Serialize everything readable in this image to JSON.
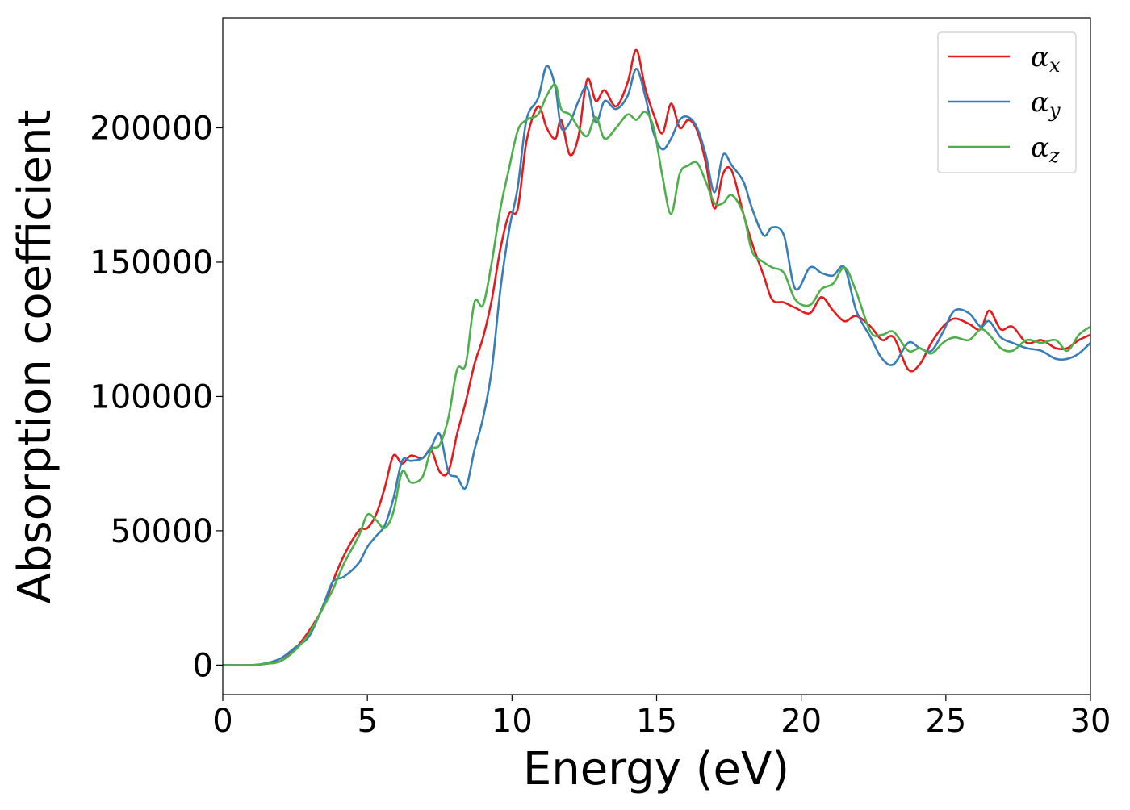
{
  "chart_data": {
    "type": "line",
    "title": "",
    "xlabel": "Energy (eV)",
    "ylabel": "Absorption coefficient",
    "xlim": [
      0,
      30
    ],
    "ylim": [
      -11000,
      241000
    ],
    "xticks": [
      0,
      5,
      10,
      15,
      20,
      25,
      30
    ],
    "xtick_labels": [
      "0",
      "5",
      "10",
      "15",
      "20",
      "25",
      "30"
    ],
    "yticks": [
      0,
      50000,
      100000,
      150000,
      200000
    ],
    "ytick_labels": [
      "0",
      "50000",
      "100000",
      "150000",
      "200000"
    ],
    "grid": false,
    "legend": {
      "placement": "top-right",
      "entries": [
        {
          "symbol": "α",
          "sub": "x"
        },
        {
          "symbol": "α",
          "sub": "y"
        },
        {
          "symbol": "α",
          "sub": "z"
        }
      ]
    },
    "series": [
      {
        "name": "αx",
        "color": "#e41a1c",
        "points": [
          [
            0,
            0
          ],
          [
            1,
            0
          ],
          [
            1.5,
            500
          ],
          [
            2,
            1500
          ],
          [
            2.5,
            6000
          ],
          [
            3,
            13000
          ],
          [
            3.5,
            22000
          ],
          [
            3.8,
            31000
          ],
          [
            4.2,
            41000
          ],
          [
            4.7,
            50000
          ],
          [
            5,
            51000
          ],
          [
            5.3,
            56000
          ],
          [
            5.6,
            66000
          ],
          [
            5.9,
            78000
          ],
          [
            6.2,
            75000
          ],
          [
            6.5,
            78000
          ],
          [
            6.9,
            77000
          ],
          [
            7.2,
            80000
          ],
          [
            7.5,
            72000
          ],
          [
            7.8,
            72000
          ],
          [
            8.1,
            86000
          ],
          [
            8.4,
            98000
          ],
          [
            8.7,
            112000
          ],
          [
            9,
            122000
          ],
          [
            9.3,
            136000
          ],
          [
            9.6,
            155000
          ],
          [
            9.9,
            168000
          ],
          [
            10.2,
            170000
          ],
          [
            10.5,
            195000
          ],
          [
            10.9,
            208000
          ],
          [
            11.2,
            200000
          ],
          [
            11.5,
            196000
          ],
          [
            11.7,
            203000
          ],
          [
            12,
            190000
          ],
          [
            12.3,
            197000
          ],
          [
            12.6,
            218000
          ],
          [
            12.9,
            210000
          ],
          [
            13.2,
            214000
          ],
          [
            13.6,
            208000
          ],
          [
            14,
            217000
          ],
          [
            14.3,
            229000
          ],
          [
            14.6,
            215000
          ],
          [
            14.9,
            205000
          ],
          [
            15.2,
            198000
          ],
          [
            15.5,
            209000
          ],
          [
            15.8,
            200000
          ],
          [
            16.1,
            203000
          ],
          [
            16.4,
            199000
          ],
          [
            16.7,
            187000
          ],
          [
            17,
            170000
          ],
          [
            17.3,
            183000
          ],
          [
            17.6,
            184000
          ],
          [
            18,
            168000
          ],
          [
            18.3,
            157000
          ],
          [
            18.7,
            145000
          ],
          [
            19,
            136000
          ],
          [
            19.4,
            135000
          ],
          [
            19.8,
            133000
          ],
          [
            20.3,
            131000
          ],
          [
            20.7,
            137000
          ],
          [
            21.1,
            132000
          ],
          [
            21.5,
            128000
          ],
          [
            21.9,
            130000
          ],
          [
            22.4,
            126000
          ],
          [
            22.8,
            121000
          ],
          [
            23.2,
            122000
          ],
          [
            23.7,
            110000
          ],
          [
            24.1,
            112000
          ],
          [
            24.5,
            120000
          ],
          [
            24.9,
            126000
          ],
          [
            25.3,
            129000
          ],
          [
            25.8,
            127000
          ],
          [
            26.2,
            125000
          ],
          [
            26.5,
            132000
          ],
          [
            26.9,
            125000
          ],
          [
            27.3,
            126000
          ],
          [
            27.8,
            120000
          ],
          [
            28.3,
            121000
          ],
          [
            28.8,
            118000
          ],
          [
            29.2,
            118000
          ],
          [
            29.6,
            121000
          ],
          [
            30,
            123000
          ]
        ]
      },
      {
        "name": "αy",
        "color": "#377eb8",
        "points": [
          [
            0,
            0
          ],
          [
            1,
            0
          ],
          [
            1.5,
            700
          ],
          [
            2,
            2500
          ],
          [
            2.5,
            6500
          ],
          [
            3,
            11000
          ],
          [
            3.5,
            23000
          ],
          [
            3.8,
            31000
          ],
          [
            4.2,
            33000
          ],
          [
            4.7,
            38000
          ],
          [
            5,
            44000
          ],
          [
            5.3,
            48000
          ],
          [
            5.6,
            52000
          ],
          [
            5.9,
            62000
          ],
          [
            6.2,
            76000
          ],
          [
            6.5,
            76000
          ],
          [
            6.9,
            77000
          ],
          [
            7.2,
            81000
          ],
          [
            7.5,
            86000
          ],
          [
            7.8,
            72000
          ],
          [
            8.1,
            70000
          ],
          [
            8.4,
            66000
          ],
          [
            8.7,
            80000
          ],
          [
            9,
            92000
          ],
          [
            9.3,
            110000
          ],
          [
            9.6,
            140000
          ],
          [
            9.9,
            162000
          ],
          [
            10.2,
            178000
          ],
          [
            10.5,
            203000
          ],
          [
            10.9,
            211000
          ],
          [
            11.2,
            223000
          ],
          [
            11.5,
            215000
          ],
          [
            11.7,
            200000
          ],
          [
            12,
            202000
          ],
          [
            12.3,
            210000
          ],
          [
            12.6,
            215000
          ],
          [
            12.9,
            202000
          ],
          [
            13.2,
            210000
          ],
          [
            13.6,
            207000
          ],
          [
            14,
            212000
          ],
          [
            14.3,
            222000
          ],
          [
            14.6,
            212000
          ],
          [
            14.9,
            198000
          ],
          [
            15.2,
            192000
          ],
          [
            15.5,
            196000
          ],
          [
            15.8,
            203000
          ],
          [
            16.1,
            204000
          ],
          [
            16.4,
            200000
          ],
          [
            16.7,
            190000
          ],
          [
            17,
            176000
          ],
          [
            17.3,
            190000
          ],
          [
            17.6,
            186000
          ],
          [
            18,
            180000
          ],
          [
            18.3,
            170000
          ],
          [
            18.7,
            160000
          ],
          [
            19,
            163000
          ],
          [
            19.4,
            160000
          ],
          [
            19.8,
            140000
          ],
          [
            20.3,
            148000
          ],
          [
            20.7,
            146000
          ],
          [
            21.1,
            145000
          ],
          [
            21.5,
            148000
          ],
          [
            21.9,
            132000
          ],
          [
            22.4,
            122000
          ],
          [
            22.8,
            114000
          ],
          [
            23.2,
            112000
          ],
          [
            23.7,
            120000
          ],
          [
            24.1,
            118000
          ],
          [
            24.5,
            117000
          ],
          [
            24.9,
            124000
          ],
          [
            25.3,
            132000
          ],
          [
            25.8,
            131000
          ],
          [
            26.2,
            126000
          ],
          [
            26.5,
            128000
          ],
          [
            26.9,
            122000
          ],
          [
            27.3,
            120000
          ],
          [
            27.8,
            118000
          ],
          [
            28.3,
            117000
          ],
          [
            28.8,
            114000
          ],
          [
            29.2,
            114000
          ],
          [
            29.6,
            116000
          ],
          [
            30,
            120000
          ]
        ]
      },
      {
        "name": "αz",
        "color": "#4daf4a",
        "points": [
          [
            0,
            0
          ],
          [
            1,
            0
          ],
          [
            1.5,
            500
          ],
          [
            2,
            1500
          ],
          [
            2.5,
            5500
          ],
          [
            3,
            12000
          ],
          [
            3.5,
            22000
          ],
          [
            3.8,
            28000
          ],
          [
            4.2,
            38000
          ],
          [
            4.7,
            48000
          ],
          [
            5,
            56000
          ],
          [
            5.3,
            54000
          ],
          [
            5.6,
            51000
          ],
          [
            5.9,
            57000
          ],
          [
            6.2,
            72000
          ],
          [
            6.5,
            68000
          ],
          [
            6.9,
            70000
          ],
          [
            7.2,
            80000
          ],
          [
            7.5,
            82000
          ],
          [
            7.8,
            92000
          ],
          [
            8.1,
            110000
          ],
          [
            8.4,
            112000
          ],
          [
            8.7,
            135000
          ],
          [
            9,
            134000
          ],
          [
            9.3,
            150000
          ],
          [
            9.6,
            170000
          ],
          [
            9.9,
            185000
          ],
          [
            10.2,
            199000
          ],
          [
            10.5,
            203000
          ],
          [
            10.9,
            205000
          ],
          [
            11.2,
            212000
          ],
          [
            11.5,
            216000
          ],
          [
            11.7,
            207000
          ],
          [
            12,
            205000
          ],
          [
            12.3,
            200000
          ],
          [
            12.6,
            197000
          ],
          [
            12.9,
            204000
          ],
          [
            13.2,
            196000
          ],
          [
            13.6,
            200000
          ],
          [
            14,
            205000
          ],
          [
            14.3,
            203000
          ],
          [
            14.6,
            206000
          ],
          [
            14.9,
            200000
          ],
          [
            15.2,
            182000
          ],
          [
            15.5,
            168000
          ],
          [
            15.8,
            183000
          ],
          [
            16.1,
            186000
          ],
          [
            16.4,
            187000
          ],
          [
            16.7,
            180000
          ],
          [
            17,
            172000
          ],
          [
            17.3,
            172000
          ],
          [
            17.6,
            175000
          ],
          [
            18,
            168000
          ],
          [
            18.3,
            154000
          ],
          [
            18.7,
            150000
          ],
          [
            19,
            148000
          ],
          [
            19.4,
            146000
          ],
          [
            19.8,
            136000
          ],
          [
            20.3,
            134000
          ],
          [
            20.7,
            140000
          ],
          [
            21.1,
            142000
          ],
          [
            21.5,
            148000
          ],
          [
            21.9,
            139000
          ],
          [
            22.4,
            124000
          ],
          [
            22.8,
            123000
          ],
          [
            23.2,
            124000
          ],
          [
            23.7,
            117000
          ],
          [
            24.1,
            118000
          ],
          [
            24.5,
            116000
          ],
          [
            24.9,
            120000
          ],
          [
            25.3,
            122000
          ],
          [
            25.8,
            121000
          ],
          [
            26.2,
            125000
          ],
          [
            26.5,
            123000
          ],
          [
            26.9,
            118000
          ],
          [
            27.3,
            117000
          ],
          [
            27.8,
            121000
          ],
          [
            28.3,
            120000
          ],
          [
            28.8,
            121000
          ],
          [
            29.2,
            117000
          ],
          [
            29.6,
            123000
          ],
          [
            30,
            126000
          ]
        ]
      }
    ]
  }
}
